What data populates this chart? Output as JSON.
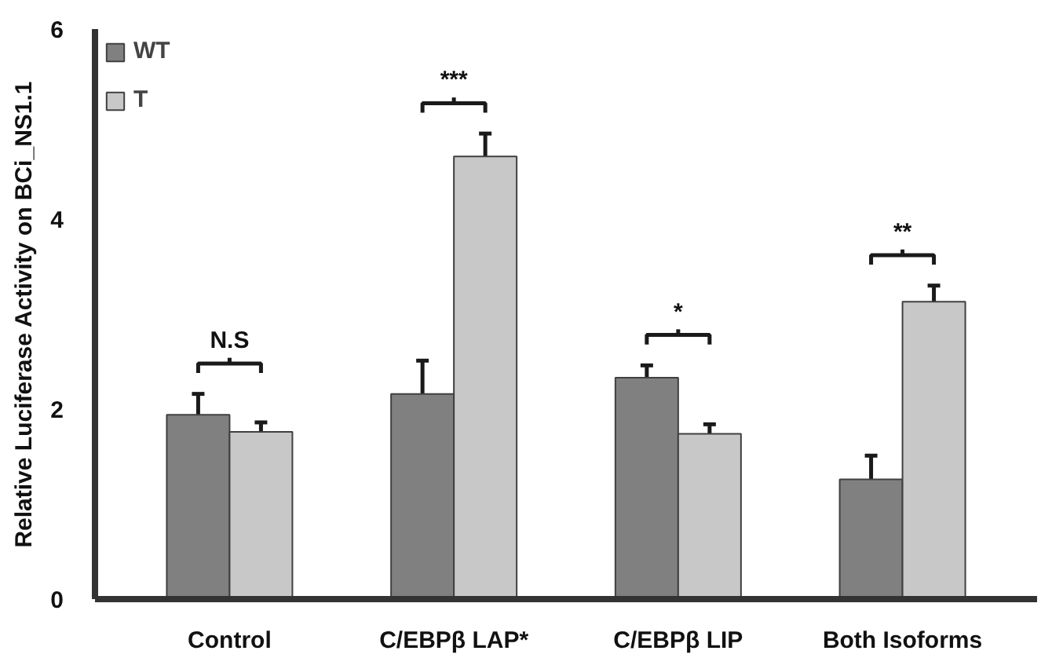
{
  "chart_data": {
    "type": "bar",
    "ylabel": "Relative Luciferase Activity on BCi_NS1.1",
    "categories": [
      "Control",
      "C/EBPβ LAP*",
      "C/EBPβ LIP",
      "Both Isoforms"
    ],
    "series": [
      {
        "name": "WT",
        "color": "#808080",
        "values": [
          1.94,
          2.16,
          2.33,
          1.26
        ],
        "errors": [
          0.22,
          0.35,
          0.13,
          0.25
        ]
      },
      {
        "name": "T",
        "color": "#c8c8c8",
        "values": [
          1.76,
          4.66,
          1.74,
          3.13
        ],
        "errors": [
          0.1,
          0.24,
          0.1,
          0.17
        ]
      }
    ],
    "ylim": [
      0,
      6
    ],
    "yticks": [
      0,
      2,
      4,
      6
    ],
    "grid": false,
    "legend": "top left",
    "annotations": [
      "N.S",
      "***",
      "*",
      "**"
    ]
  }
}
